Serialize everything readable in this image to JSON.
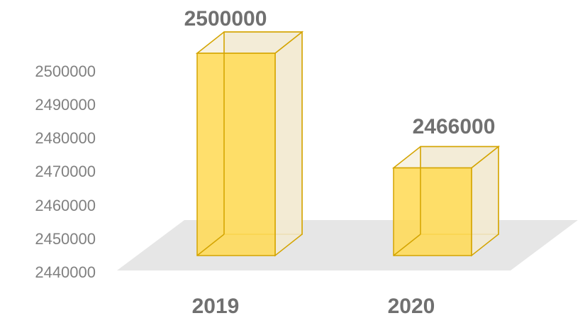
{
  "chart_data": {
    "type": "bar",
    "categories": [
      "2019",
      "2020"
    ],
    "values": [
      2500000,
      2466000
    ],
    "data_labels": [
      "2500000",
      "2466000"
    ],
    "y_ticks": [
      "2500000",
      "2490000",
      "2480000",
      "2470000",
      "2460000",
      "2450000",
      "2440000"
    ],
    "ylim": [
      2440000,
      2500000
    ],
    "title": "",
    "xlabel": "",
    "ylabel": "",
    "grid": false,
    "legend": "none",
    "style": "3d-column",
    "colors": {
      "bar_front": "#FFDB58",
      "bar_side": "#F2EAD2",
      "bar_edge": "#D4A400",
      "floor": "#E6E6E6",
      "text": "#707070",
      "tick_text": "#808080"
    }
  }
}
